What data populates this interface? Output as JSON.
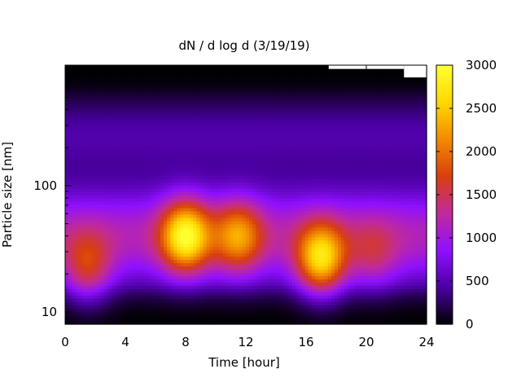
{
  "chart_data": {
    "type": "heatmap",
    "title": "dN / d log d (3/19/19)",
    "xlabel": "Time [hour]",
    "ylabel": "Particle size [nm]",
    "xlim": [
      0,
      24
    ],
    "ylim": [
      8,
      900
    ],
    "y_scale": "log",
    "x_ticks": [
      0,
      4,
      8,
      12,
      16,
      20,
      24
    ],
    "x_tick_labels": [
      "0",
      "4",
      "8",
      "12",
      "16",
      "20",
      "24"
    ],
    "y_ticks": [
      10,
      100
    ],
    "y_tick_labels": [
      "10",
      "100"
    ],
    "colorbar": {
      "range": [
        0,
        3000
      ],
      "ticks": [
        0,
        500,
        1000,
        1500,
        2000,
        2500,
        3000
      ],
      "tick_labels": [
        "0",
        "500",
        "1000",
        "1500",
        "2000",
        "2500",
        "3000"
      ],
      "palette": [
        "#000000",
        "#4a00a0",
        "#8f10ff",
        "#c02a9c",
        "#d83e10",
        "#f28a00",
        "#ffd800",
        "#ffff30"
      ]
    },
    "colorbar_samples": [
      0,
      250,
      500,
      750,
      1000,
      1250,
      1500,
      1750,
      2000,
      2250,
      2500,
      2750,
      3000
    ],
    "mode_peaks": [
      {
        "time_h": 1.5,
        "size_nm": 22,
        "value": 2000
      },
      {
        "time_h": 8,
        "size_nm": 40,
        "value": 3000
      },
      {
        "time_h": 11.5,
        "size_nm": 40,
        "value": 2300
      },
      {
        "time_h": 17,
        "size_nm": 26,
        "value": 2900
      },
      {
        "time_h": 20.5,
        "size_nm": 28,
        "value": 1600
      }
    ],
    "no_data": [
      {
        "time_from_h": 17.5,
        "time_to_h": 22.5,
        "size_above_nm": 840
      },
      {
        "time_from_h": 22.5,
        "time_to_h": 24,
        "size_above_nm": 720
      }
    ],
    "grid": false
  }
}
